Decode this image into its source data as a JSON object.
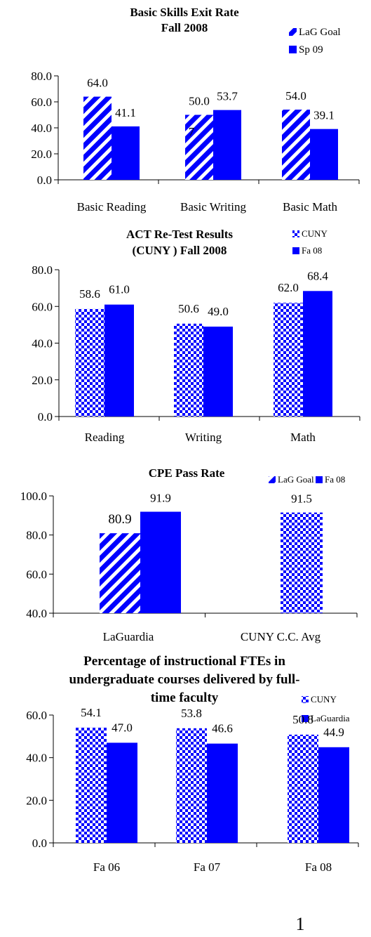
{
  "page_number": "1",
  "colors": {
    "blue": "#0000ff",
    "white": "#ffffff",
    "axis": "#000000"
  },
  "chart_data": [
    {
      "type": "bar",
      "title_lines": [
        "Basic Skills Exit Rate",
        "Fall 2008"
      ],
      "categories": [
        "Basic Reading",
        "Basic Writing",
        "Basic Math"
      ],
      "series": [
        {
          "name": "LaG Goal",
          "pattern": "stripes",
          "values": [
            64.0,
            50.0,
            54.0
          ],
          "labels": [
            "64.0",
            "50.0",
            "54.0"
          ]
        },
        {
          "name": "Sp 09",
          "pattern": "solid",
          "values": [
            41.1,
            53.7,
            39.1
          ],
          "labels": [
            "41.1",
            "53.7",
            "39.1"
          ]
        }
      ],
      "stray_text": "7",
      "ylim": [
        0,
        80
      ],
      "yticks": [
        "0.0",
        "20.0",
        "40.0",
        "60.0",
        "80.0"
      ],
      "legend": "top-right, stacked",
      "grid": false
    },
    {
      "type": "bar",
      "title_lines": [
        "ACT Re-Test Results",
        "(CUNY ) Fall 2008"
      ],
      "categories": [
        "Reading",
        "Writing",
        "Math"
      ],
      "series": [
        {
          "name": "CUNY",
          "pattern": "checker",
          "values": [
            58.6,
            50.6,
            62.0
          ],
          "labels": [
            "58.6",
            "50.6",
            "62.0"
          ]
        },
        {
          "name": "Fa 08",
          "pattern": "solid",
          "values": [
            61.0,
            49.0,
            68.4
          ],
          "labels": [
            "61.0",
            "49.0",
            "68.4"
          ]
        }
      ],
      "ylim": [
        0,
        80
      ],
      "yticks": [
        "0.0",
        "20.0",
        "40.0",
        "60.0",
        "80.0"
      ],
      "legend": "top-right, stacked",
      "grid": false
    },
    {
      "type": "bar",
      "title_lines": [
        "CPE Pass Rate"
      ],
      "categories": [
        "LaGuardia",
        "CUNY C.C. Avg"
      ],
      "bars": [
        {
          "category": "LaGuardia",
          "pattern": "stripes",
          "value": 80.9,
          "label": "80.9"
        },
        {
          "category": "LaGuardia",
          "pattern": "solid",
          "value": 91.9,
          "label": "91.9"
        },
        {
          "category": "CUNY C.C. Avg",
          "pattern": "checker",
          "value": 91.5,
          "label": "91.5"
        }
      ],
      "legend_entries": [
        {
          "name": "LaG Goal",
          "pattern": "stripes"
        },
        {
          "name": "Fa 08",
          "pattern": "solid"
        }
      ],
      "ylim": [
        40,
        100
      ],
      "yticks": [
        "40.0",
        "60.0",
        "80.0",
        "100.0"
      ],
      "legend": "top-right, inline",
      "grid": false
    },
    {
      "type": "bar",
      "title_lines": [
        "Percentage of instructional FTEs in",
        "undergraduate courses delivered by full-",
        "time faculty"
      ],
      "categories": [
        "Fa 06",
        "Fa 07",
        "Fa 08"
      ],
      "series": [
        {
          "name": "CUNY",
          "pattern": "checker",
          "values": [
            54.1,
            53.8,
            50.8
          ],
          "labels": [
            "54.1",
            "53.8",
            "50.8"
          ]
        },
        {
          "name": "LaGuardia",
          "pattern": "solid",
          "values": [
            47.0,
            46.6,
            44.9
          ],
          "labels": [
            "47.0",
            "46.6",
            "44.9"
          ]
        }
      ],
      "ylim": [
        0,
        60
      ],
      "yticks": [
        "0.0",
        "20.0",
        "40.0",
        "60.0"
      ],
      "legend": "top-right, stacked",
      "grid": false
    }
  ]
}
